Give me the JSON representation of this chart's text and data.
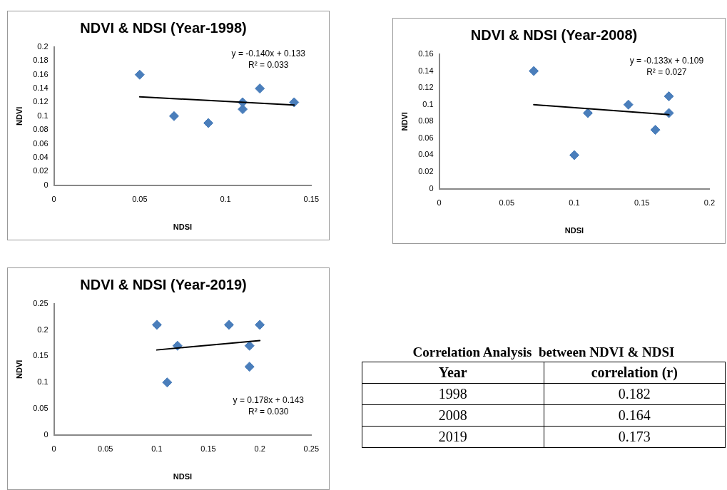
{
  "chart_data": [
    {
      "type": "scatter",
      "title": "NDVI & NDSI (Year-1998)",
      "xlabel": "NDSI",
      "ylabel": "NDVI",
      "xlim": [
        0,
        0.15
      ],
      "xticks": [
        0,
        0.05,
        0.1,
        0.15
      ],
      "ylim": [
        0,
        0.2
      ],
      "yticks": [
        0,
        0.02,
        0.04,
        0.06,
        0.08,
        0.1,
        0.12,
        0.14,
        0.16,
        0.18,
        0.2
      ],
      "annotations": [
        "y = -0.140x + 0.133",
        "R² = 0.033"
      ],
      "series": [
        {
          "type": "scatter",
          "marker": "diamond",
          "color": "#4a7ebb",
          "x": [
            0.05,
            0.07,
            0.09,
            0.11,
            0.11,
            0.12,
            0.14
          ],
          "values": [
            0.16,
            0.1,
            0.09,
            0.12,
            0.11,
            0.14,
            0.12
          ]
        },
        {
          "type": "line",
          "marker": "none",
          "color": "#000000",
          "x": [
            0.05,
            0.14
          ],
          "values": [
            0.128,
            0.116
          ]
        }
      ]
    },
    {
      "type": "scatter",
      "title": "NDVI & NDSI (Year-2008)",
      "xlabel": "NDSI",
      "ylabel": "NDVI",
      "xlim": [
        0,
        0.2
      ],
      "xticks": [
        0,
        0.05,
        0.1,
        0.15,
        0.2
      ],
      "ylim": [
        0,
        0.16
      ],
      "yticks": [
        0,
        0.02,
        0.04,
        0.06,
        0.08,
        0.1,
        0.12,
        0.14,
        0.16
      ],
      "annotations": [
        "y = -0.133x + 0.109",
        "R² = 0.027"
      ],
      "series": [
        {
          "type": "scatter",
          "marker": "diamond",
          "color": "#4a7ebb",
          "x": [
            0.07,
            0.1,
            0.11,
            0.14,
            0.16,
            0.17,
            0.17
          ],
          "values": [
            0.14,
            0.04,
            0.09,
            0.1,
            0.07,
            0.11,
            0.09
          ]
        },
        {
          "type": "line",
          "marker": "none",
          "color": "#000000",
          "x": [
            0.07,
            0.17
          ],
          "values": [
            0.1,
            0.088
          ]
        }
      ]
    },
    {
      "type": "scatter",
      "title": "NDVI & NDSI (Year-2019)",
      "xlabel": "NDSI",
      "ylabel": "NDVI",
      "xlim": [
        0,
        0.25
      ],
      "xticks": [
        0,
        0.05,
        0.1,
        0.15,
        0.2,
        0.25
      ],
      "ylim": [
        0,
        0.25
      ],
      "yticks": [
        0,
        0.05,
        0.1,
        0.15,
        0.2,
        0.25
      ],
      "annotations": [
        "y = 0.178x + 0.143",
        "R² = 0.030"
      ],
      "series": [
        {
          "type": "scatter",
          "marker": "diamond",
          "color": "#4a7ebb",
          "x": [
            0.1,
            0.11,
            0.12,
            0.17,
            0.19,
            0.19,
            0.2
          ],
          "values": [
            0.21,
            0.1,
            0.17,
            0.21,
            0.17,
            0.13,
            0.21
          ]
        },
        {
          "type": "line",
          "marker": "none",
          "color": "#000000",
          "x": [
            0.1,
            0.2
          ],
          "values": [
            0.162,
            0.18
          ]
        }
      ]
    },
    {
      "type": "other",
      "title": "Correlation Analysis  between NDVI & NDSI",
      "annotations": [
        "Year",
        "correlation (r)",
        "1998",
        "0.182",
        "2008",
        "0.164",
        "2019",
        "0.173"
      ]
    }
  ]
}
